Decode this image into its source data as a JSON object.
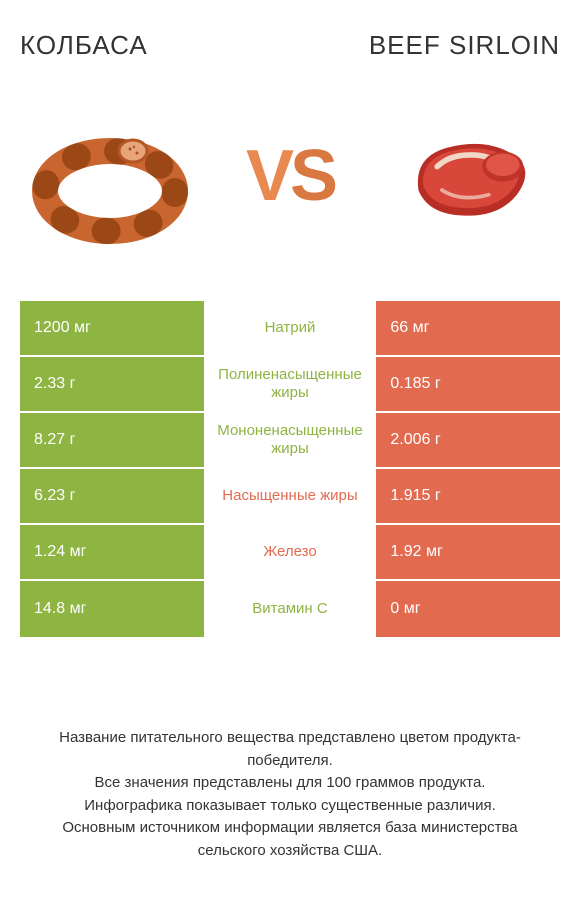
{
  "header": {
    "left_title": "КОЛБАСА",
    "right_title": "BEEF SIRLOIN",
    "vs_text": "VS"
  },
  "colors": {
    "green": "#8eb442",
    "red": "#e26a4f",
    "vs": "#e9884f",
    "background": "#ffffff"
  },
  "illustrations": {
    "left": {
      "name": "sausage-ring",
      "primary": "#c9652e",
      "accent": "#e38a50"
    },
    "right": {
      "name": "beef-steak",
      "primary": "#c03328",
      "accent": "#e86b5a",
      "fat": "#f1d7c6"
    }
  },
  "rows": [
    {
      "left": "1200 мг",
      "label": "Натрий",
      "right": "66 мг",
      "winner": "left"
    },
    {
      "left": "2.33 г",
      "label": "Полиненасыщенные жиры",
      "right": "0.185 г",
      "winner": "left"
    },
    {
      "left": "8.27 г",
      "label": "Мононенасыщенные жиры",
      "right": "2.006 г",
      "winner": "left"
    },
    {
      "left": "6.23 г",
      "label": "Насыщенные жиры",
      "right": "1.915 г",
      "winner": "right"
    },
    {
      "left": "1.24 мг",
      "label": "Железо",
      "right": "1.92 мг",
      "winner": "right"
    },
    {
      "left": "14.8 мг",
      "label": "Витамин C",
      "right": "0 мг",
      "winner": "left"
    }
  ],
  "footer": {
    "line1": "Название питательного вещества представлено цветом продукта-победителя.",
    "line2": "Все значения представлены для 100 граммов продукта.",
    "line3": "Инфографика показывает только существенные различия.",
    "line4": "Основным источником информации является база министерства сельского хозяйства США."
  }
}
